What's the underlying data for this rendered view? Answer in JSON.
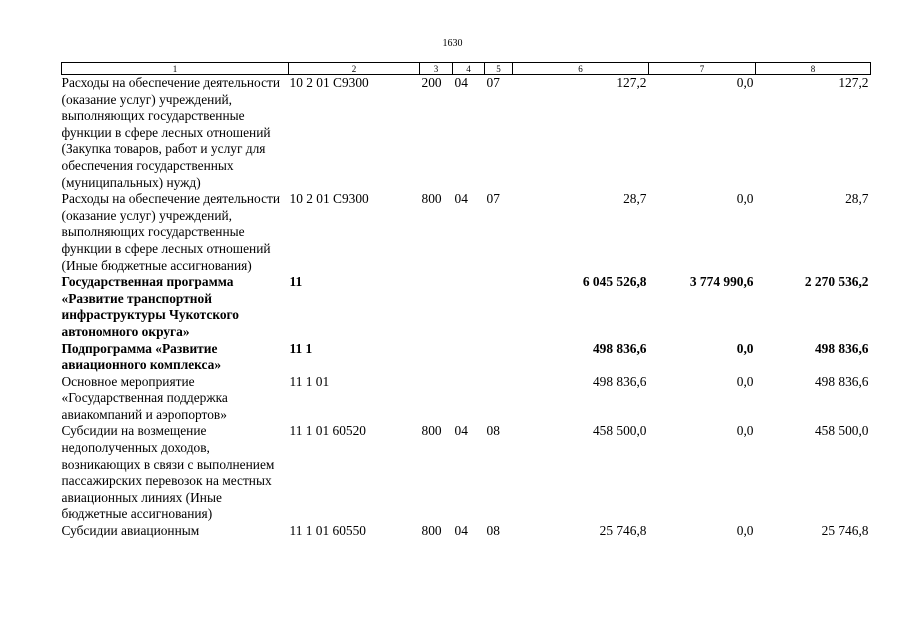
{
  "page_number": "1630",
  "columns": [
    "1",
    "2",
    "3",
    "4",
    "5",
    "6",
    "7",
    "8"
  ],
  "rows": [
    {
      "name": "Расходы на обеспечение деятельности (оказание услуг) учреждений, выполняющих государственные функции в сфере лесных отношений (Закупка товаров, работ и услуг для обеспечения государственных (муниципальных) нужд)",
      "code": "10 2 01 С9300",
      "c3": "200",
      "c4": "04",
      "c5": "07",
      "v6": "127,2",
      "v7": "0,0",
      "v8": "127,2",
      "bold": false
    },
    {
      "name": "Расходы на обеспечение деятельности (оказание услуг) учреждений, выполняющих государственные функции в сфере лесных отношений (Иные бюджетные ассигнования)",
      "code": "10 2 01 С9300",
      "c3": "800",
      "c4": "04",
      "c5": "07",
      "v6": "28,7",
      "v7": "0,0",
      "v8": "28,7",
      "bold": false
    },
    {
      "name": "Государственная программа «Развитие транспортной инфраструктуры Чукотского автономного округа»",
      "code": "11",
      "c3": "",
      "c4": "",
      "c5": "",
      "v6": "6 045 526,8",
      "v7": "3 774 990,6",
      "v8": "2 270 536,2",
      "bold": true
    },
    {
      "name": "Подпрограмма «Развитие авиационного комплекса»",
      "code": "11 1",
      "c3": "",
      "c4": "",
      "c5": "",
      "v6": "498 836,6",
      "v7": "0,0",
      "v8": "498 836,6",
      "bold": true
    },
    {
      "name": "Основное мероприятие «Государственная поддержка авиакомпаний и аэропортов»",
      "code": "11 1 01",
      "c3": "",
      "c4": "",
      "c5": "",
      "v6": "498 836,6",
      "v7": "0,0",
      "v8": "498 836,6",
      "bold": false
    },
    {
      "name": "Субсидии на возмещение недополученных доходов, возникающих в связи с выполнением пассажирских перевозок на местных авиационных линиях (Иные бюджетные ассигнования)",
      "code": "11 1 01 60520",
      "c3": "800",
      "c4": "04",
      "c5": "08",
      "v6": "458 500,0",
      "v7": "0,0",
      "v8": "458 500,0",
      "bold": false
    },
    {
      "name": "Субсидии авиационным",
      "code": "11 1 01 60550",
      "c3": "800",
      "c4": "04",
      "c5": "08",
      "v6": "25 746,8",
      "v7": "0,0",
      "v8": "25 746,8",
      "bold": false
    }
  ]
}
